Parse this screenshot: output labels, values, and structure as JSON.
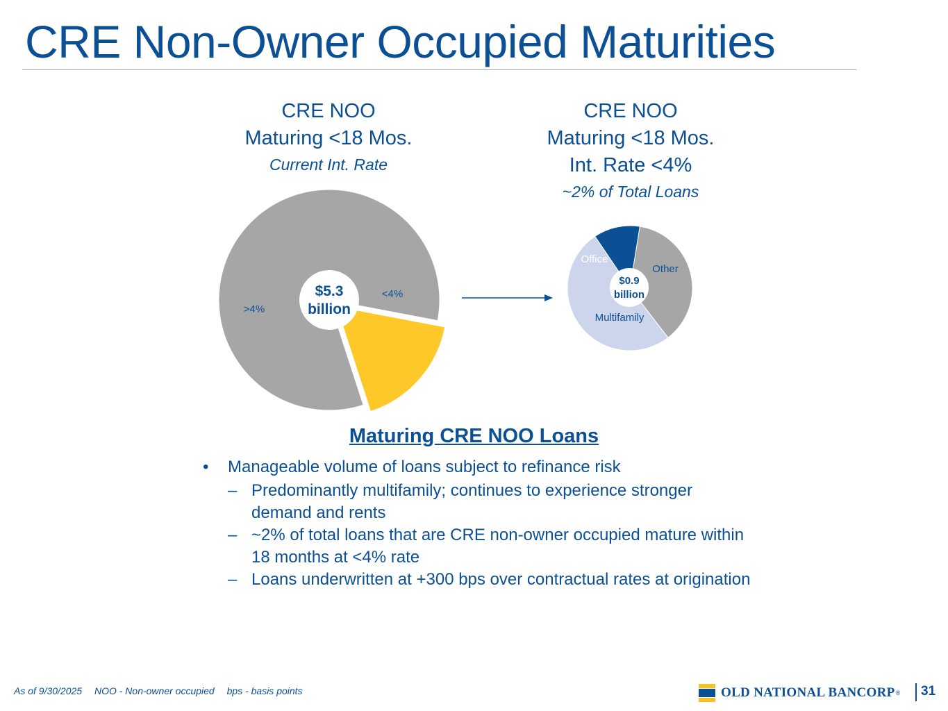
{
  "slide": {
    "title": "CRE Non-Owner Occupied Maturities",
    "page_number": "31"
  },
  "left_chart": {
    "heading_line1": "CRE NOO",
    "heading_line2": "Maturing <18 Mos.",
    "subheading": "Current Int. Rate",
    "center_value": "$5.3",
    "center_unit": "billion"
  },
  "right_chart": {
    "heading_line1": "CRE NOO",
    "heading_line2": "Maturing <18 Mos.",
    "heading_line3": "Int. Rate <4%",
    "subheading": "~2% of Total Loans",
    "center_value": "$0.9",
    "center_unit": "billion"
  },
  "chart_data": [
    {
      "type": "pie",
      "subtype": "donut",
      "categories": [
        ">4%",
        "<4%"
      ],
      "values": [
        0.83,
        0.17
      ],
      "colors": [
        "#a6a6a6",
        "#fdc828"
      ],
      "exploded": "<4%"
    },
    {
      "type": "pie",
      "subtype": "donut",
      "categories": [
        "Office",
        "Other",
        "Multifamily"
      ],
      "values": [
        0.12,
        0.37,
        0.51
      ],
      "colors": [
        "#0b4f94",
        "#a6a6a6",
        "#ccd5ec"
      ]
    }
  ],
  "section": {
    "heading": "Maturing CRE NOO Loans",
    "bullet_marker": "•",
    "sub_marker": "–",
    "bullets": [
      {
        "text": "Manageable volume of loans subject to refinance risk",
        "subs": [
          "Predominantly multifamily; continues to experience stronger demand and rents",
          "~2% of total loans that are CRE non-owner occupied mature within 18 months at <4% rate",
          "Loans underwritten at +300 bps over contractual rates at origination"
        ]
      }
    ]
  },
  "footnote": {
    "as_of": "As of 9/30/2025",
    "noo": "NOO - Non-owner occupied",
    "bps": "bps - basis points"
  },
  "logo": {
    "text": "OLD NATIONAL BANCORP",
    "reg": "®"
  },
  "colors": {
    "brand_blue": "#0b4f94",
    "brand_gold": "#fdc828",
    "gray": "#a6a6a6",
    "light_periwinkle": "#ccd5ec"
  }
}
